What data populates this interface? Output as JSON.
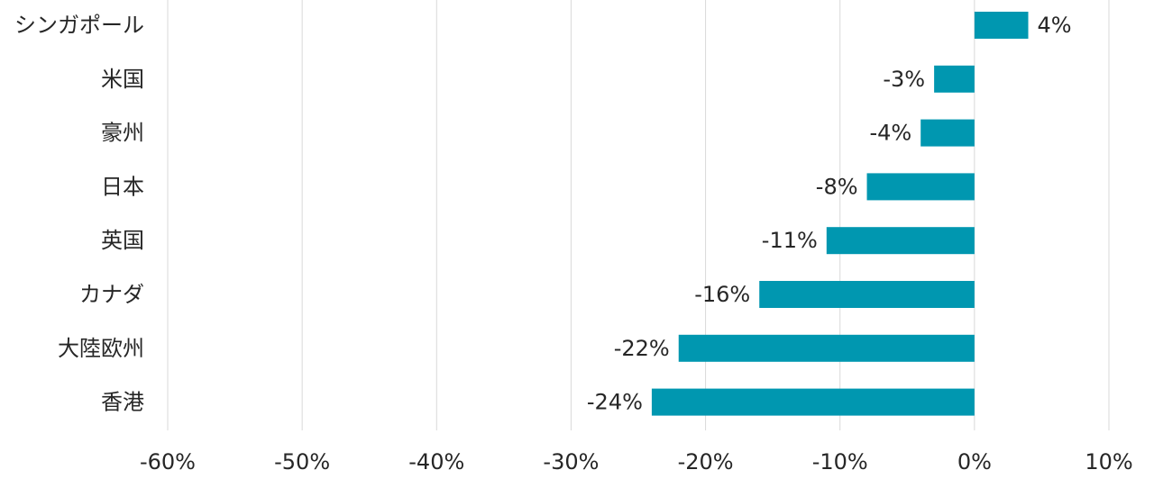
{
  "chart_data": {
    "type": "bar",
    "orientation": "horizontal",
    "categories": [
      "シンガポール",
      "米国",
      "豪州",
      "日本",
      "英国",
      "カナダ",
      "大陸欧州",
      "香港"
    ],
    "values": [
      4,
      -3,
      -4,
      -8,
      -11,
      -16,
      -22,
      -24
    ],
    "data_labels": [
      "4%",
      "-3%",
      "-4%",
      "-8%",
      "-11%",
      "-16%",
      "-22%",
      "-24%"
    ],
    "xlim": [
      -60,
      10
    ],
    "x_ticks": [
      -60,
      -50,
      -40,
      -30,
      -20,
      -10,
      0,
      10
    ],
    "x_tick_labels": [
      "-60%",
      "-50%",
      "-40%",
      "-30%",
      "-20%",
      "-10%",
      "0%",
      "10%"
    ],
    "title": "",
    "xlabel": "",
    "ylabel": "",
    "grid": "vertical",
    "legend": "none",
    "bar_color": "#0097b0"
  }
}
